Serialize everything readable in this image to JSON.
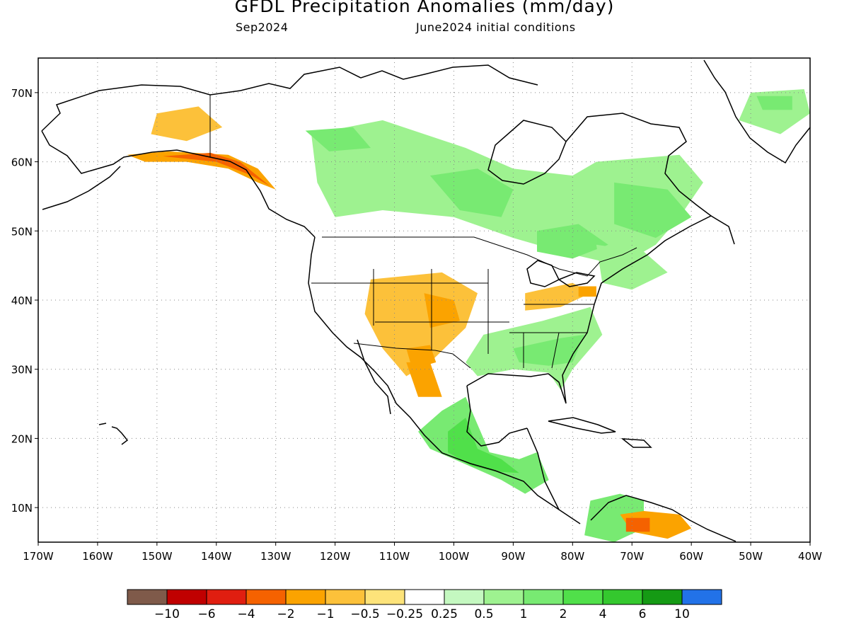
{
  "title": "GFDL Precipitation Anomalies (mm/day)",
  "subtitle_left": "Sep2024",
  "subtitle_right": "June2024 initial conditions",
  "map": {
    "lon_range": [
      -170,
      -40
    ],
    "lat_range": [
      5,
      75
    ],
    "lon_ticks": [
      "170W",
      "160W",
      "150W",
      "140W",
      "130W",
      "120W",
      "110W",
      "100W",
      "90W",
      "80W",
      "70W",
      "60W",
      "50W",
      "40W"
    ],
    "lat_ticks": [
      "10N",
      "20N",
      "30N",
      "40N",
      "50N",
      "60N",
      "70N"
    ],
    "lon_tick_values": [
      -170,
      -160,
      -150,
      -140,
      -130,
      -120,
      -110,
      -100,
      -90,
      -80,
      -70,
      -60,
      -50,
      -40
    ],
    "lat_tick_values": [
      10,
      20,
      30,
      40,
      50,
      60,
      70
    ],
    "grid": "dotted"
  },
  "colorbar": {
    "colors": [
      "#7f5a4a",
      "#c00000",
      "#e01e10",
      "#f56200",
      "#fba300",
      "#fcc13a",
      "#fde37a",
      "#ffffff",
      "#c4f8c0",
      "#9ef290",
      "#78ea72",
      "#50e04a",
      "#34c82e",
      "#159a14",
      "#2272e8"
    ],
    "labels": [
      "−10",
      "−6",
      "−4",
      "−2",
      "−1",
      "−0.5",
      "−0.25",
      "0.25",
      "0.5",
      "1",
      "2",
      "4",
      "6",
      "10"
    ]
  },
  "anomalies": [
    {
      "name": "alaska-dry",
      "level": "-1",
      "pts": [
        [
          -155,
          61
        ],
        [
          -148,
          61.5
        ],
        [
          -138,
          61
        ],
        [
          -133,
          59
        ],
        [
          -130,
          56
        ],
        [
          -133,
          57
        ],
        [
          -138,
          59
        ],
        [
          -145,
          60
        ],
        [
          -152,
          60
        ]
      ]
    },
    {
      "name": "alaska-coast-strong",
      "level": "-2",
      "pts": [
        [
          -149,
          60.8
        ],
        [
          -141,
          61.3
        ],
        [
          -136,
          60
        ],
        [
          -131,
          56.5
        ],
        [
          -134,
          58
        ],
        [
          -140,
          60
        ]
      ]
    },
    {
      "name": "yukon-dry",
      "level": "-0.5",
      "pts": [
        [
          -150,
          67
        ],
        [
          -143,
          68
        ],
        [
          -139,
          65
        ],
        [
          -145,
          63
        ],
        [
          -151,
          64
        ]
      ]
    },
    {
      "name": "canada-west-wet",
      "level": "0.5",
      "pts": [
        [
          -124,
          64
        ],
        [
          -112,
          66
        ],
        [
          -98,
          62
        ],
        [
          -90,
          59
        ],
        [
          -80,
          58
        ],
        [
          -76,
          60
        ],
        [
          -62,
          61
        ],
        [
          -58,
          57
        ],
        [
          -62,
          52
        ],
        [
          -66,
          48
        ],
        [
          -72,
          45
        ],
        [
          -82,
          47
        ],
        [
          -90,
          49
        ],
        [
          -100,
          52
        ],
        [
          -112,
          53
        ],
        [
          -120,
          52
        ],
        [
          -123,
          57
        ]
      ]
    },
    {
      "name": "canada-central-wet",
      "level": "1",
      "pts": [
        [
          -104,
          58
        ],
        [
          -96,
          59
        ],
        [
          -90,
          56
        ],
        [
          -92,
          52
        ],
        [
          -99,
          53
        ]
      ]
    },
    {
      "name": "nwt-wet",
      "level": "1",
      "pts": [
        [
          -125,
          64.5
        ],
        [
          -117,
          65
        ],
        [
          -114,
          62
        ],
        [
          -121,
          61.5
        ]
      ]
    },
    {
      "name": "quebec-wet",
      "level": "1",
      "pts": [
        [
          -73,
          57
        ],
        [
          -64,
          56
        ],
        [
          -60,
          52
        ],
        [
          -66,
          49
        ],
        [
          -73,
          51
        ]
      ]
    },
    {
      "name": "ontario-wet",
      "level": "1",
      "pts": [
        [
          -86,
          50
        ],
        [
          -79,
          51
        ],
        [
          -74,
          48
        ],
        [
          -80,
          46
        ],
        [
          -86,
          47
        ]
      ]
    },
    {
      "name": "greenland-wet",
      "level": "0.5",
      "pts": [
        [
          -50,
          70
        ],
        [
          -41,
          70.5
        ],
        [
          -40,
          67
        ],
        [
          -45,
          64
        ],
        [
          -52,
          66
        ]
      ]
    },
    {
      "name": "greenland-core",
      "level": "1",
      "pts": [
        [
          -49,
          69.5
        ],
        [
          -43,
          69.5
        ],
        [
          -43,
          67.5
        ],
        [
          -48,
          67.5
        ]
      ]
    },
    {
      "name": "us-southwest-dry",
      "level": "-0.5",
      "pts": [
        [
          -114,
          43
        ],
        [
          -102,
          44
        ],
        [
          -96,
          41
        ],
        [
          -98,
          36
        ],
        [
          -104,
          31
        ],
        [
          -108,
          29
        ],
        [
          -112,
          33
        ],
        [
          -115,
          38
        ]
      ]
    },
    {
      "name": "colorado-dry",
      "level": "-1",
      "pts": [
        [
          -105,
          41
        ],
        [
          -100,
          40
        ],
        [
          -99,
          37
        ],
        [
          -104,
          36
        ]
      ]
    },
    {
      "name": "nm-dry",
      "level": "-1",
      "pts": [
        [
          -108,
          33
        ],
        [
          -104,
          33.5
        ],
        [
          -103,
          31
        ],
        [
          -107,
          30
        ]
      ]
    },
    {
      "name": "mexico-dry",
      "level": "-1",
      "pts": [
        [
          -108,
          31
        ],
        [
          -104,
          31
        ],
        [
          -102,
          26
        ],
        [
          -106,
          26
        ]
      ]
    },
    {
      "name": "ohio-dry",
      "level": "-0.5",
      "pts": [
        [
          -88,
          41
        ],
        [
          -80,
          42.5
        ],
        [
          -77,
          41
        ],
        [
          -82,
          39
        ],
        [
          -88,
          38.5
        ]
      ]
    },
    {
      "name": "pa-dry",
      "level": "-1",
      "pts": [
        [
          -79,
          42
        ],
        [
          -76,
          42
        ],
        [
          -76,
          40.5
        ],
        [
          -79,
          40.5
        ]
      ]
    },
    {
      "name": "ne-us-wet",
      "level": "0.5",
      "pts": [
        [
          -76,
          48
        ],
        [
          -68,
          47
        ],
        [
          -64,
          44
        ],
        [
          -70,
          41.5
        ],
        [
          -75,
          42.5
        ]
      ]
    },
    {
      "name": "se-us-wet",
      "level": "0.5",
      "pts": [
        [
          -95,
          35
        ],
        [
          -85,
          37
        ],
        [
          -77,
          39
        ],
        [
          -75,
          35
        ],
        [
          -80,
          30
        ],
        [
          -82,
          27
        ],
        [
          -84,
          29.5
        ],
        [
          -90,
          30
        ],
        [
          -96,
          29
        ],
        [
          -98,
          31
        ]
      ]
    },
    {
      "name": "se-us-core",
      "level": "1",
      "pts": [
        [
          -90,
          33
        ],
        [
          -82,
          34.5
        ],
        [
          -78,
          35
        ],
        [
          -80,
          31
        ],
        [
          -84,
          30.5
        ],
        [
          -89,
          31
        ]
      ]
    },
    {
      "name": "mexico-wet",
      "level": "1",
      "pts": [
        [
          -102,
          24
        ],
        [
          -98,
          26
        ],
        [
          -96,
          22
        ],
        [
          -94,
          18
        ],
        [
          -89,
          17
        ],
        [
          -86,
          18
        ],
        [
          -84,
          14
        ],
        [
          -88,
          12
        ],
        [
          -92,
          14
        ],
        [
          -96,
          15.5
        ],
        [
          -104,
          18.5
        ],
        [
          -106,
          21
        ]
      ]
    },
    {
      "name": "mexico-wet-core",
      "level": "2",
      "pts": [
        [
          -101,
          21
        ],
        [
          -98,
          23
        ],
        [
          -96,
          18.5
        ],
        [
          -92,
          17
        ],
        [
          -89,
          15
        ],
        [
          -93,
          15.2
        ],
        [
          -97,
          16
        ],
        [
          -101,
          18
        ]
      ]
    },
    {
      "name": "colombia-wet",
      "level": "1",
      "pts": [
        [
          -77,
          11
        ],
        [
          -72,
          12
        ],
        [
          -68,
          11
        ],
        [
          -68,
          7
        ],
        [
          -73,
          5
        ],
        [
          -78,
          6
        ]
      ]
    },
    {
      "name": "venezuela-dry",
      "level": "-1",
      "pts": [
        [
          -72,
          9
        ],
        [
          -68,
          9.5
        ],
        [
          -62,
          9
        ],
        [
          -60,
          7
        ],
        [
          -64,
          5.5
        ],
        [
          -70,
          6.5
        ]
      ]
    },
    {
      "name": "venezuela-dry-core",
      "level": "-2",
      "pts": [
        [
          -71,
          8.5
        ],
        [
          -67,
          8.5
        ],
        [
          -67,
          6.5
        ],
        [
          -71,
          6.5
        ]
      ]
    }
  ]
}
